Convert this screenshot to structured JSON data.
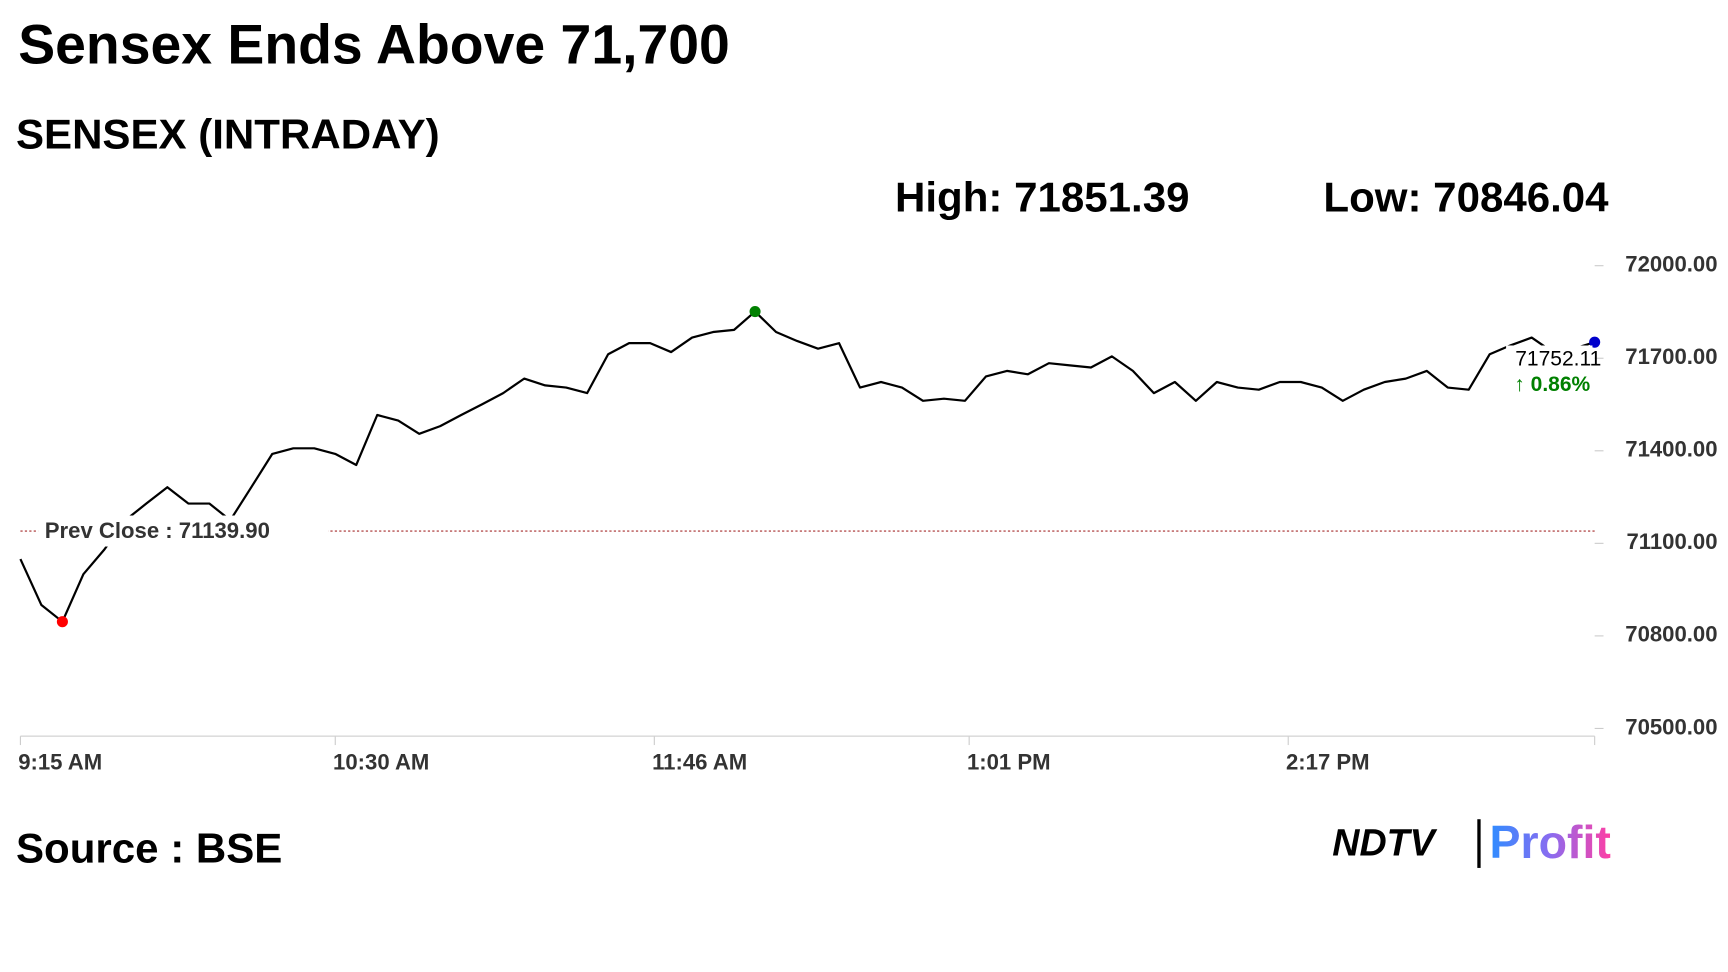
{
  "chart_data": {
    "type": "line",
    "title": "Sensex Ends Above 71,700",
    "subtitle": "SENSEX (INTRADAY)",
    "high_label": "High: 71851.39",
    "low_label": "Low: 70846.04",
    "source": "Source : BSE",
    "logo": {
      "left": "NDTV",
      "right": "Profit"
    },
    "prev_close": {
      "value": 71139.9,
      "label": "Prev Close : 71139.90"
    },
    "last_label": "71752.11",
    "change_label": "↑ 0.86%",
    "x": [
      555,
      560,
      565,
      570,
      575,
      580,
      585,
      590,
      595,
      600,
      605,
      610,
      615,
      620,
      625,
      630,
      635,
      640,
      645,
      650,
      655,
      660,
      665,
      670,
      675,
      680,
      685,
      690,
      695,
      700,
      705,
      710,
      715,
      720,
      725,
      730,
      735,
      740,
      745,
      750,
      755,
      760,
      765,
      770,
      775,
      780,
      785,
      790,
      795,
      800,
      805,
      810,
      815,
      820,
      825,
      830,
      835,
      840,
      845,
      850,
      855,
      860,
      865,
      870,
      875,
      880,
      885,
      890,
      895,
      900,
      905,
      910,
      915,
      920,
      925,
      930
    ],
    "series": [
      {
        "name": "SENSEX",
        "color": "#000000",
        "values": [
          71049,
          70900,
          70846.04,
          71000,
          71080,
          71175,
          71229,
          71282,
          71229,
          71229,
          71175,
          71282,
          71390,
          71408,
          71408,
          71390,
          71354,
          71516,
          71498,
          71455,
          71480,
          71516,
          71551,
          71587,
          71634,
          71612,
          71605,
          71587,
          71713,
          71749,
          71749,
          71720,
          71767,
          71785,
          71792,
          71851.39,
          71785,
          71756,
          71731,
          71749,
          71605,
          71623,
          71605,
          71562,
          71569,
          71562,
          71641,
          71659,
          71648,
          71684,
          71677,
          71670,
          71706,
          71659,
          71587,
          71623,
          71562,
          71623,
          71605,
          71598,
          71623,
          71623,
          71605,
          71562,
          71598,
          71623,
          71634,
          71659,
          71605,
          71598,
          71713,
          71742,
          71767,
          71720,
          71731,
          71752.11
        ]
      }
    ],
    "xlim": [
      555,
      930
    ],
    "xticks": [
      {
        "value": 555,
        "label": "9:15 AM"
      },
      {
        "value": 630,
        "label": "10:30 AM"
      },
      {
        "value": 706,
        "label": "11:46 AM"
      },
      {
        "value": 781,
        "label": "1:01 PM"
      },
      {
        "value": 857,
        "label": "2:17 PM"
      }
    ],
    "ylim": [
      70500,
      72000
    ],
    "yticks": [
      {
        "value": 70500,
        "label": "70500.00"
      },
      {
        "value": 70800,
        "label": "70800.00"
      },
      {
        "value": 71100,
        "label": "71100.00"
      },
      {
        "value": 71400,
        "label": "71400.00"
      },
      {
        "value": 71700,
        "label": "71700.00"
      },
      {
        "value": 72000,
        "label": "72000.00"
      }
    ],
    "high_color": "#008000",
    "low_color": "#ff0000",
    "last_color": "#0000cc",
    "prev_close_color": "#a52a2a"
  }
}
